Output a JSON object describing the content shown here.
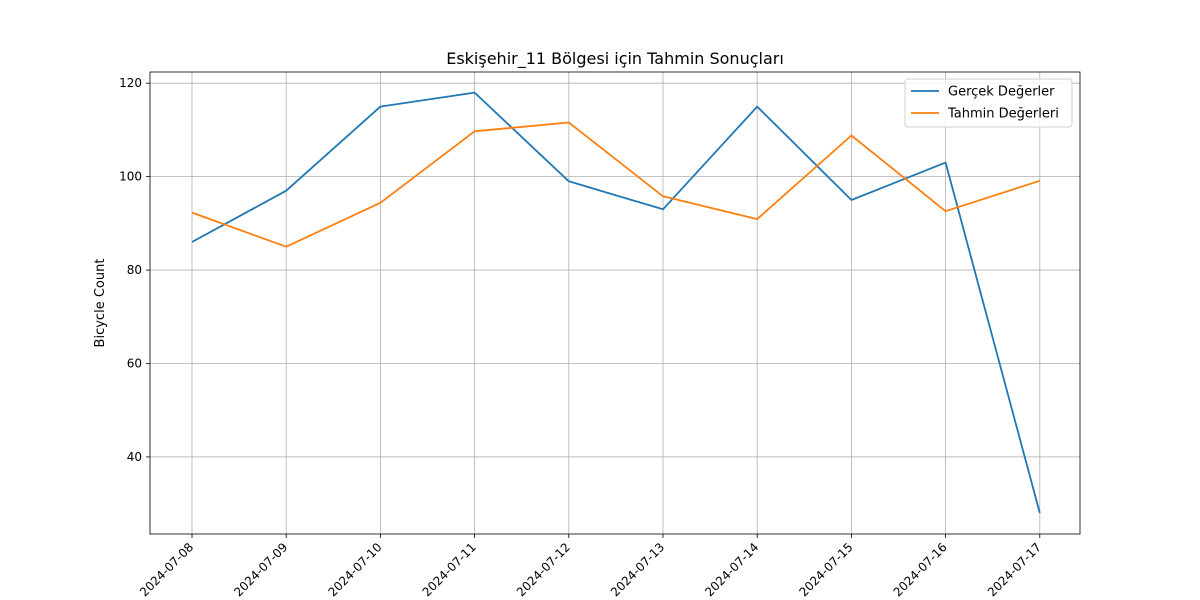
{
  "chart_data": {
    "type": "line",
    "title": "Eskişehir_11 Bölgesi için Tahmin Sonuçları",
    "xlabel": "",
    "ylabel": "Bicycle Count",
    "x": [
      "2024-07-08",
      "2024-07-09",
      "2024-07-10",
      "2024-07-11",
      "2024-07-12",
      "2024-07-13",
      "2024-07-14",
      "2024-07-15",
      "2024-07-16",
      "2024-07-17"
    ],
    "series": [
      {
        "name": "Gerçek Değerler",
        "color": "#1f77b4",
        "values": [
          86,
          97,
          115,
          118,
          99,
          93,
          115,
          95,
          103,
          28
        ]
      },
      {
        "name": "Tahmin Değerleri",
        "color": "#ff7f0e",
        "values": [
          92.3,
          85,
          94.4,
          109.7,
          111.6,
          95.8,
          90.9,
          108.8,
          92.6,
          99.1
        ]
      }
    ],
    "ylim": [
      23.5,
      122.4
    ],
    "yticks": [
      40,
      60,
      80,
      100,
      120
    ],
    "grid": true,
    "legend_position": "top-right"
  }
}
